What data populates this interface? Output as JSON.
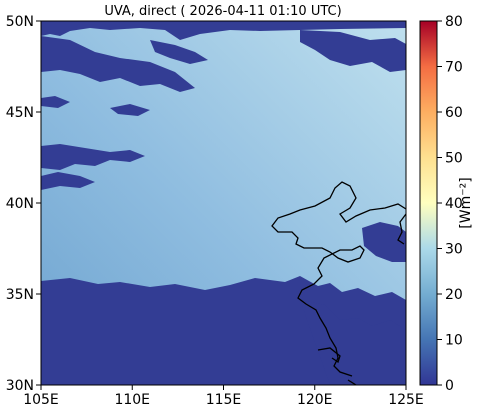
{
  "title": "UVA, direct ( 2026-04-11 01:10 UTC)",
  "map": {
    "lon_range": [
      105,
      125
    ],
    "lat_range": [
      30,
      50
    ],
    "x_ticks": [
      {
        "value": 105,
        "label": "105E"
      },
      {
        "value": 110,
        "label": "110E"
      },
      {
        "value": 115,
        "label": "115E"
      },
      {
        "value": 120,
        "label": "120E"
      },
      {
        "value": 125,
        "label": "125E"
      }
    ],
    "y_ticks": [
      {
        "value": 30,
        "label": "30N"
      },
      {
        "value": 35,
        "label": "35N"
      },
      {
        "value": 40,
        "label": "40N"
      },
      {
        "value": 45,
        "label": "45N"
      },
      {
        "value": 50,
        "label": "50N"
      }
    ],
    "cloud_color": "#333d94",
    "clear_sky_color_west": "#74a8d2",
    "clear_sky_color_east": "#b8dcec"
  },
  "colorbar": {
    "label": "[Wm⁻²]",
    "range": [
      0,
      80
    ],
    "ticks": [
      {
        "value": 0,
        "label": "0"
      },
      {
        "value": 10,
        "label": "10"
      },
      {
        "value": 20,
        "label": "20"
      },
      {
        "value": 30,
        "label": "30"
      },
      {
        "value": 40,
        "label": "40"
      },
      {
        "value": 50,
        "label": "50"
      },
      {
        "value": 60,
        "label": "60"
      },
      {
        "value": 70,
        "label": "70"
      },
      {
        "value": 80,
        "label": "80"
      }
    ],
    "colormap": "RdYlBu_r"
  }
}
